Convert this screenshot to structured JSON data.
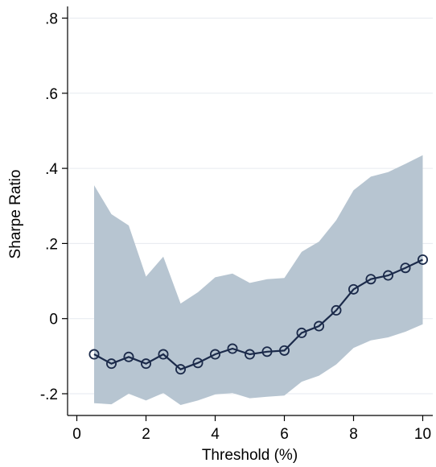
{
  "chart_data": {
    "type": "line",
    "title": "",
    "xlabel": "Threshold (%)",
    "ylabel": "Sharpe Ratio",
    "xlim": [
      0,
      10
    ],
    "ylim": [
      -0.2,
      0.8
    ],
    "xticks": [
      0,
      2,
      4,
      6,
      8,
      10
    ],
    "xtick_labels": [
      "0",
      "2",
      "4",
      "6",
      "8",
      "10"
    ],
    "yticks": [
      -0.2,
      0,
      0.2,
      0.4,
      0.6,
      0.8
    ],
    "ytick_labels": [
      "-.2",
      "0",
      ".2",
      ".4",
      ".6",
      ".8"
    ],
    "grid": "horizontal",
    "legend": "none",
    "line_color": "#1b2a4a",
    "band_color": "#b7c5d1",
    "series": [
      {
        "x": [
          0.5,
          1.0,
          1.5,
          2.0,
          2.5,
          3.0,
          3.5,
          4.0,
          4.5,
          5.0,
          5.5,
          6.0,
          6.5,
          7.0,
          7.5,
          8.0,
          8.5,
          9.0,
          9.5,
          10.0
        ],
        "values": [
          -0.095,
          -0.12,
          -0.102,
          -0.12,
          -0.095,
          -0.135,
          -0.118,
          -0.095,
          -0.08,
          -0.095,
          -0.088,
          -0.085,
          -0.038,
          -0.02,
          0.022,
          0.078,
          0.105,
          0.115,
          0.135,
          0.157
        ],
        "upper": [
          0.355,
          0.278,
          0.248,
          0.112,
          0.165,
          0.04,
          0.07,
          0.11,
          0.12,
          0.095,
          0.105,
          0.108,
          0.178,
          0.205,
          0.262,
          0.342,
          0.378,
          0.39,
          0.412,
          0.435
        ],
        "lower": [
          -0.225,
          -0.228,
          -0.2,
          -0.218,
          -0.198,
          -0.23,
          -0.218,
          -0.202,
          -0.198,
          -0.212,
          -0.208,
          -0.205,
          -0.168,
          -0.152,
          -0.122,
          -0.078,
          -0.058,
          -0.05,
          -0.035,
          -0.015
        ]
      }
    ]
  }
}
